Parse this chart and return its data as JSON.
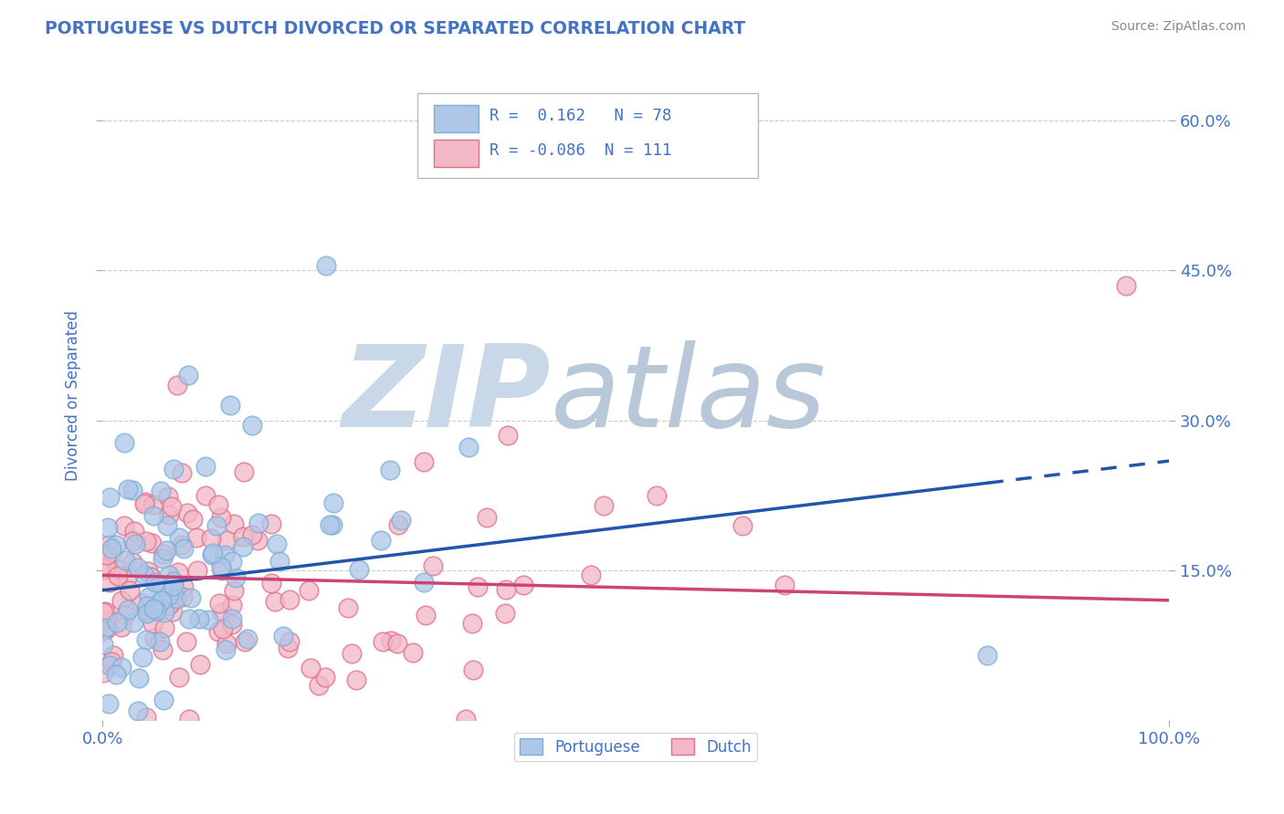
{
  "title": "PORTUGUESE VS DUTCH DIVORCED OR SEPARATED CORRELATION CHART",
  "source": "Source: ZipAtlas.com",
  "ylabel": "Divorced or Separated",
  "xlim": [
    0.0,
    1.0
  ],
  "ylim": [
    0.0,
    0.65
  ],
  "yticks": [
    0.15,
    0.3,
    0.45,
    0.6
  ],
  "xtick_labels": [
    "0.0%",
    "100.0%"
  ],
  "ytick_labels": [
    "15.0%",
    "30.0%",
    "45.0%",
    "60.0%"
  ],
  "portuguese_R": 0.162,
  "portuguese_N": 78,
  "dutch_R": -0.086,
  "dutch_N": 111,
  "blue_dot_face": "#aec6e8",
  "blue_dot_edge": "#7bafd4",
  "pink_dot_face": "#f2b8c6",
  "pink_dot_edge": "#e07090",
  "trend_blue": "#2255aa",
  "trend_pink": "#cc4477",
  "watermark_zip_color": "#c8d8e8",
  "watermark_atlas_color": "#b8c8d8",
  "background_color": "#ffffff",
  "grid_color": "#cccccc",
  "title_color": "#4472c4",
  "tick_color": "#4472c4",
  "seed": 7
}
